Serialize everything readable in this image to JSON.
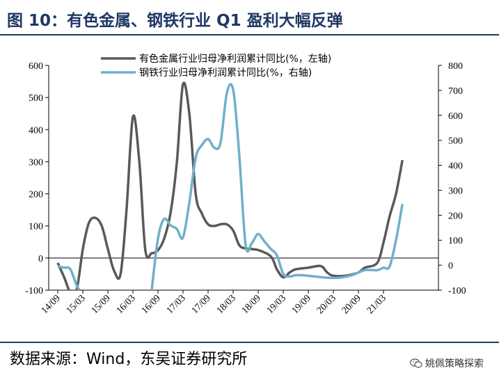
{
  "header": {
    "title": "图 10：有色金属、钢铁行业 Q1 盈利大幅反弹"
  },
  "footer": {
    "source": "数据来源：Wind，东吴证券研究所",
    "watermark": "姚佩策略探索"
  },
  "colors": {
    "nonferrous": "#595959",
    "steel": "#6fb0c8",
    "rule": "#1f3864"
  },
  "icons": {
    "watermark": "wechat-icon"
  },
  "chart_data": {
    "type": "line",
    "title": "",
    "x_tick_labels": [
      "14/09",
      "15/03",
      "15/09",
      "16/03",
      "16/09",
      "17/03",
      "17/09",
      "18/03",
      "18/09",
      "19/03",
      "19/09",
      "20/03",
      "20/09",
      "21/03"
    ],
    "y_left": {
      "range": [
        -100,
        600
      ],
      "ticks": [
        -100,
        0,
        100,
        200,
        300,
        400,
        500,
        600
      ]
    },
    "y_right": {
      "range": [
        -100,
        800
      ],
      "ticks": [
        -100,
        0,
        100,
        200,
        300,
        400,
        500,
        600,
        700,
        800
      ]
    },
    "legend_position": "top",
    "series": [
      {
        "name": "有色金属行业归母净利润累计同比(%，左轴)",
        "axis": "left",
        "points": [
          [
            0.0,
            -15
          ],
          [
            0.17,
            -60
          ],
          [
            0.33,
            -105
          ],
          [
            0.5,
            -100
          ],
          [
            0.67,
            30
          ],
          [
            0.83,
            110
          ],
          [
            1.0,
            125
          ],
          [
            1.17,
            100
          ],
          [
            1.33,
            30
          ],
          [
            1.5,
            -40
          ],
          [
            1.67,
            -50
          ],
          [
            1.83,
            150
          ],
          [
            2.0,
            440
          ],
          [
            2.17,
            300
          ],
          [
            2.33,
            25
          ],
          [
            2.5,
            15
          ],
          [
            2.67,
            25
          ],
          [
            2.83,
            60
          ],
          [
            3.0,
            140
          ],
          [
            3.17,
            300
          ],
          [
            3.33,
            540
          ],
          [
            3.5,
            450
          ],
          [
            3.67,
            200
          ],
          [
            3.83,
            140
          ],
          [
            4.0,
            105
          ],
          [
            4.17,
            100
          ],
          [
            4.33,
            105
          ],
          [
            4.5,
            105
          ],
          [
            4.67,
            85
          ],
          [
            4.83,
            40
          ],
          [
            5.0,
            30
          ],
          [
            5.33,
            25
          ],
          [
            5.67,
            5
          ],
          [
            5.83,
            -35
          ],
          [
            6.0,
            -60
          ],
          [
            6.17,
            -45
          ],
          [
            6.33,
            -35
          ],
          [
            6.67,
            -30
          ],
          [
            7.0,
            -25
          ],
          [
            7.17,
            -45
          ],
          [
            7.33,
            -55
          ],
          [
            7.67,
            -55
          ],
          [
            8.0,
            -45
          ],
          [
            8.17,
            -30
          ],
          [
            8.5,
            -15
          ],
          [
            8.67,
            50
          ],
          [
            8.83,
            130
          ],
          [
            9.0,
            200
          ],
          [
            9.17,
            305
          ]
        ]
      },
      {
        "name": "钢铁行业归母净利润累计同比(%，右轴)",
        "axis": "right",
        "points": [
          [
            0.0,
            -5
          ],
          [
            0.17,
            -10
          ],
          [
            0.33,
            -15
          ],
          [
            0.5,
            -80
          ],
          [
            0.58,
            -100
          ],
          [
            2.5,
            -100
          ],
          [
            2.67,
            110
          ],
          [
            2.83,
            185
          ],
          [
            3.0,
            160
          ],
          [
            3.17,
            145
          ],
          [
            3.33,
            110
          ],
          [
            3.5,
            250
          ],
          [
            3.67,
            430
          ],
          [
            3.83,
            480
          ],
          [
            4.0,
            505
          ],
          [
            4.17,
            470
          ],
          [
            4.33,
            490
          ],
          [
            4.5,
            690
          ],
          [
            4.67,
            700
          ],
          [
            4.83,
            440
          ],
          [
            5.0,
            80
          ],
          [
            5.17,
            90
          ],
          [
            5.33,
            125
          ],
          [
            5.5,
            95
          ],
          [
            5.67,
            65
          ],
          [
            5.83,
            40
          ],
          [
            6.0,
            -35
          ],
          [
            6.17,
            -45
          ],
          [
            6.33,
            -40
          ],
          [
            6.5,
            -40
          ],
          [
            6.83,
            -45
          ],
          [
            7.17,
            -50
          ],
          [
            7.5,
            -50
          ],
          [
            7.83,
            -40
          ],
          [
            8.17,
            -20
          ],
          [
            8.5,
            -20
          ],
          [
            8.67,
            -10
          ],
          [
            8.83,
            -5
          ],
          [
            9.0,
            100
          ],
          [
            9.17,
            245
          ]
        ]
      }
    ]
  }
}
